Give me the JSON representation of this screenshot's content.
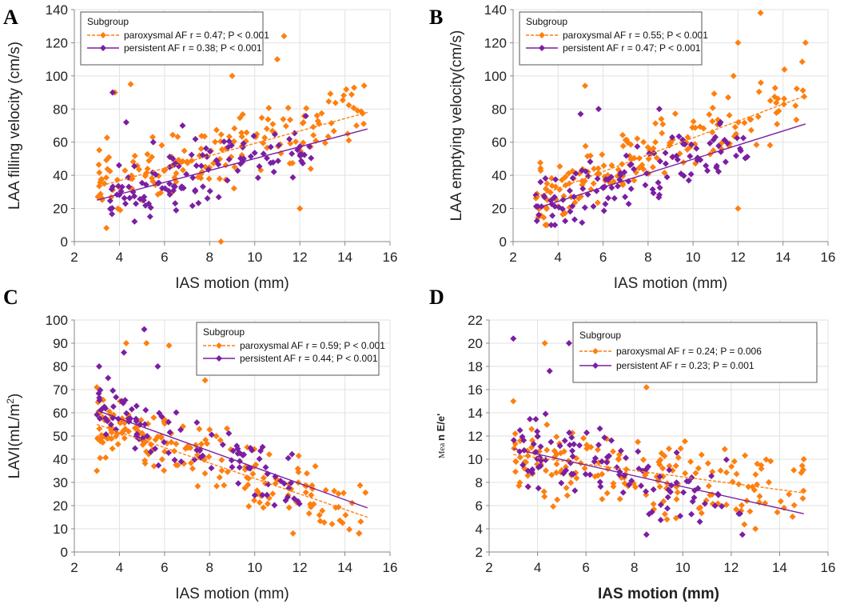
{
  "colors": {
    "paroxysmal": "#ff7f0e",
    "persistent": "#7b1fa2",
    "grid": "#e2e2e2",
    "axis": "#888888"
  },
  "chart_data": [
    {
      "panel": "A",
      "type": "scatter",
      "xlabel": "IAS motion (mm)",
      "ylabel": "LAA filling velocity (cm/s)",
      "xlim": [
        2,
        16
      ],
      "ylim": [
        0,
        140
      ],
      "xticks": [
        "2",
        "4",
        "6",
        "8",
        "10",
        "12",
        "14",
        "16"
      ],
      "yticks": [
        "0",
        "20",
        "40",
        "60",
        "80",
        "100",
        "120",
        "140"
      ],
      "legend": {
        "title": "Subgroup",
        "position": "top-left",
        "entries": [
          {
            "name": "paroxysmal AF",
            "stat": "r = 0.47; P < 0.001"
          },
          {
            "name": "persistent AF",
            "stat": "r = 0.38; P < 0.001"
          }
        ]
      },
      "fits": [
        {
          "series": "paroxysmal AF",
          "style": "dashed",
          "x": [
            3,
            15
          ],
          "y": [
            33,
            78
          ]
        },
        {
          "series": "persistent AF",
          "style": "solid",
          "x": [
            3,
            15
          ],
          "y": [
            25,
            68
          ]
        }
      ],
      "seed": 11,
      "series": [
        {
          "name": "paroxysmal AF",
          "n": 170,
          "xrange": [
            3,
            15
          ],
          "line": [
            33,
            78
          ],
          "noise": 14,
          "ymin": 0,
          "ymax": 124,
          "points": [
            [
              8.5,
              0
            ],
            [
              11.3,
              124
            ],
            [
              10,
              112
            ],
            [
              11,
              110
            ],
            [
              3.8,
              90
            ],
            [
              12,
              20
            ],
            [
              4.5,
              95
            ],
            [
              9,
              100
            ]
          ]
        },
        {
          "name": "persistent AF",
          "n": 120,
          "xrange": [
            3.5,
            12.5
          ],
          "line": [
            25,
            68
          ],
          "noise": 12,
          "ymin": 10,
          "ymax": 90,
          "points": [
            [
              3.7,
              90
            ],
            [
              4.3,
              72
            ],
            [
              5.5,
              60
            ],
            [
              6.8,
              70
            ]
          ]
        }
      ]
    },
    {
      "panel": "B",
      "type": "scatter",
      "xlabel": "IAS motion (mm)",
      "ylabel": "LAA  emptying velocity(cm/s)",
      "xlim": [
        2,
        16
      ],
      "ylim": [
        0,
        140
      ],
      "xticks": [
        "2",
        "4",
        "6",
        "8",
        "10",
        "12",
        "14",
        "16"
      ],
      "yticks": [
        "0",
        "20",
        "40",
        "60",
        "80",
        "100",
        "120",
        "140"
      ],
      "legend": {
        "title": "Subgroup",
        "position": "top-left",
        "entries": [
          {
            "name": "paroxysmal AF",
            "stat": "r = 0.55; P < 0.001"
          },
          {
            "name": "persistent AF",
            "stat": "r = 0.47; P < 0.001"
          }
        ]
      },
      "fits": [
        {
          "series": "paroxysmal AF",
          "style": "dashed",
          "x": [
            3,
            15
          ],
          "y": [
            27,
            88
          ]
        },
        {
          "series": "persistent AF",
          "style": "solid",
          "x": [
            3,
            15
          ],
          "y": [
            20,
            71
          ]
        }
      ],
      "seed": 23,
      "series": [
        {
          "name": "paroxysmal AF",
          "n": 170,
          "xrange": [
            3,
            15
          ],
          "line": [
            27,
            88
          ],
          "noise": 14,
          "ymin": 10,
          "ymax": 138,
          "points": [
            [
              13,
              138
            ],
            [
              15,
              120
            ],
            [
              12,
              120
            ],
            [
              11.8,
              100
            ],
            [
              12,
              20
            ],
            [
              5.2,
              94
            ]
          ]
        },
        {
          "name": "persistent AF",
          "n": 120,
          "xrange": [
            3,
            12.5
          ],
          "line": [
            20,
            71
          ],
          "noise": 12,
          "ymin": 10,
          "ymax": 82,
          "points": [
            [
              5,
              77
            ],
            [
              5.8,
              80
            ],
            [
              8.5,
              80
            ]
          ]
        }
      ]
    },
    {
      "panel": "C",
      "type": "scatter",
      "xlabel": "IAS motion (mm)",
      "ylabel": "LAVI(mL/m",
      "ylabel_sup": "2",
      "ylabel_close": ")",
      "xlim": [
        2,
        16
      ],
      "ylim": [
        0,
        100
      ],
      "xticks": [
        "2",
        "4",
        "6",
        "8",
        "10",
        "12",
        "14",
        "16"
      ],
      "yticks": [
        "0",
        "10",
        "20",
        "30",
        "40",
        "50",
        "60",
        "70",
        "80",
        "90",
        "100"
      ],
      "legend": {
        "title": "Subgroup",
        "position": "top-right",
        "entries": [
          {
            "name": "paroxysmal AF",
            "stat": "r = 0.59; P < 0.001"
          },
          {
            "name": "persistent AF",
            "stat": "r = 0.44; P < 0.001"
          }
        ]
      },
      "fits": [
        {
          "series": "paroxysmal AF",
          "style": "dashed",
          "x": [
            3,
            15
          ],
          "y": [
            55,
            15
          ]
        },
        {
          "series": "persistent AF",
          "style": "solid",
          "x": [
            3,
            15
          ],
          "y": [
            61,
            19
          ]
        }
      ],
      "seed": 37,
      "series": [
        {
          "name": "paroxysmal AF",
          "n": 190,
          "xrange": [
            3,
            15
          ],
          "line": [
            55,
            15
          ],
          "noise": 9,
          "ymin": 8,
          "ymax": 90,
          "points": [
            [
              4.3,
              90
            ],
            [
              5.2,
              90
            ],
            [
              6.2,
              89
            ],
            [
              11.7,
              8
            ],
            [
              3,
              71
            ],
            [
              3,
              35
            ],
            [
              7.8,
              74
            ]
          ]
        },
        {
          "name": "persistent AF",
          "n": 100,
          "xrange": [
            3,
            12
          ],
          "line": [
            61,
            19
          ],
          "noise": 9,
          "ymin": 14,
          "ymax": 96,
          "points": [
            [
              5.1,
              96
            ],
            [
              5.7,
              80
            ],
            [
              3.1,
              80
            ],
            [
              3.5,
              75
            ],
            [
              4.2,
              86
            ]
          ]
        }
      ]
    },
    {
      "panel": "D",
      "type": "scatter",
      "xlabel": "IAS motion (mm)",
      "ylabel_small": "Mea",
      "ylabel": "n E/e'",
      "xlim": [
        2,
        16
      ],
      "ylim": [
        2,
        22
      ],
      "xticks": [
        "2",
        "4",
        "6",
        "8",
        "10",
        "12",
        "14",
        "16"
      ],
      "yticks": [
        "2",
        "4",
        "6",
        "8",
        "10",
        "12",
        "14",
        "16",
        "18",
        "20",
        "22"
      ],
      "legend": {
        "title": "Subgroup",
        "position": "top-right",
        "entries": [
          {
            "name": "paroxysmal AF",
            "stat": "r = 0.24; P = 0.006"
          },
          {
            "name": "persistent AF",
            "stat": "   r = 0.23; P = 0.001"
          }
        ]
      },
      "fits": [
        {
          "series": "paroxysmal AF",
          "style": "dashed",
          "x": [
            3,
            15
          ],
          "y": [
            10.4,
            7.1
          ]
        },
        {
          "series": "persistent AF",
          "style": "solid",
          "x": [
            3,
            15
          ],
          "y": [
            10.9,
            5.3
          ]
        }
      ],
      "seed": 53,
      "series": [
        {
          "name": "paroxysmal AF",
          "n": 180,
          "xrange": [
            3,
            15
          ],
          "line": [
            10.4,
            7.1
          ],
          "noise": 2.4,
          "ymin": 4,
          "ymax": 20,
          "points": [
            [
              4.3,
              20
            ],
            [
              10.5,
              17.3
            ],
            [
              8.5,
              16.2
            ],
            [
              13,
              4
            ],
            [
              15,
              10
            ],
            [
              3,
              15
            ]
          ]
        },
        {
          "name": "persistent AF",
          "n": 110,
          "xrange": [
            3,
            12.5
          ],
          "line": [
            10.9,
            5.3
          ],
          "noise": 2.4,
          "ymin": 3.5,
          "ymax": 20.5,
          "points": [
            [
              3,
              20.4
            ],
            [
              5.3,
              20
            ],
            [
              8.5,
              3.5
            ],
            [
              4.5,
              17.6
            ],
            [
              6,
              17.5
            ]
          ]
        }
      ]
    }
  ]
}
